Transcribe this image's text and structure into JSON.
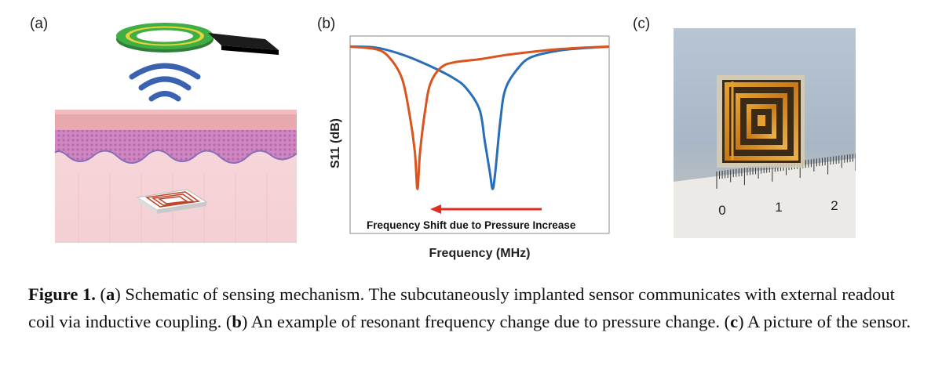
{
  "panels": {
    "a": {
      "label": "(a)"
    },
    "b": {
      "label": "(b)"
    },
    "c": {
      "label": "(c)"
    }
  },
  "chart_data": {
    "type": "line",
    "title": "",
    "xlabel": "Frequency (MHz)",
    "ylabel": "S11 (dB)",
    "grid": false,
    "legend": "none",
    "annotations": [
      {
        "text": "Frequency Shift due to Pressure Increase",
        "arrow_direction": "left",
        "color": "#e32b23"
      }
    ],
    "x_range": [
      0,
      100
    ],
    "y_range": [
      -30,
      0
    ],
    "series": [
      {
        "color": "#2a6eb8",
        "x": [
          0,
          10,
          20,
          30,
          40,
          45,
          50,
          52,
          54,
          55,
          56,
          58,
          60,
          65,
          70,
          80,
          90,
          100
        ],
        "y": [
          -2,
          -2.2,
          -3.5,
          -5.5,
          -8,
          -10,
          -14,
          -20,
          -26,
          -29,
          -26,
          -16,
          -10,
          -6,
          -4,
          -2.8,
          -2.3,
          -2
        ]
      },
      {
        "color": "#d9541e",
        "x": [
          0,
          10,
          15,
          20,
          23,
          25,
          26,
          27,
          29,
          31,
          35,
          40,
          50,
          60,
          70,
          80,
          90,
          100
        ],
        "y": [
          -2,
          -2.5,
          -4,
          -8,
          -15,
          -22,
          -29,
          -22,
          -14,
          -9,
          -6,
          -5,
          -4.4,
          -3.6,
          -3,
          -2.5,
          -2.2,
          -2
        ]
      }
    ]
  },
  "ruler": {
    "ticks": [
      "0",
      "1",
      "2"
    ]
  },
  "caption": {
    "figure_label": "Figure 1.",
    "part_a_letter": "a",
    "part_a_text": "Schematic of sensing mechanism. The subcutaneously implanted sensor communicates with external readout coil via inductive coupling.",
    "part_b_letter": "b",
    "part_b_text": "An example of resonant frequency change due to pressure change.",
    "part_c_letter": "c",
    "part_c_text": "A picture of the sensor."
  },
  "colors": {
    "blue_series": "#2a6eb8",
    "orange_series": "#d9541e",
    "arrow_red": "#e32b23",
    "coil_green": "#3fae45",
    "coil_yellow": "#e8d33a",
    "wireless_blue": "#3a62b0",
    "skin_pink": "#f2c9c9",
    "epidermis_purple": "#c77ab8"
  }
}
